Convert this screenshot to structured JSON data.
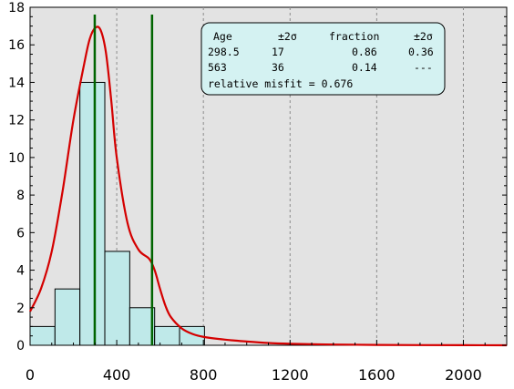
{
  "chart_data": {
    "type": "bar",
    "title": "",
    "xlabel": "",
    "ylabel": "",
    "xlim": [
      0,
      2200
    ],
    "ylim": [
      0,
      18
    ],
    "x_ticks": [
      "0",
      "400",
      "800",
      "1200",
      "1600",
      "2000"
    ],
    "y_ticks": [
      "0",
      "2",
      "4",
      "6",
      "8",
      "10",
      "12",
      "14",
      "16",
      "18"
    ],
    "histogram": {
      "bin_width": 115,
      "bins": [
        {
          "start": 0,
          "end": 115,
          "count": 1
        },
        {
          "start": 115,
          "end": 230,
          "count": 3
        },
        {
          "start": 230,
          "end": 345,
          "count": 14
        },
        {
          "start": 345,
          "end": 460,
          "count": 5
        },
        {
          "start": 460,
          "end": 575,
          "count": 2
        },
        {
          "start": 575,
          "end": 690,
          "count": 1
        },
        {
          "start": 690,
          "end": 805,
          "count": 1
        }
      ]
    },
    "density_curve": {
      "x": [
        0,
        50,
        100,
        150,
        200,
        250,
        275,
        300,
        325,
        350,
        375,
        400,
        450,
        500,
        550,
        575,
        600,
        625,
        650,
        700,
        750,
        800,
        900,
        1000,
        1100,
        1200,
        1400,
        1600,
        1800,
        2000,
        2200
      ],
      "y": [
        1.8,
        3.0,
        5.0,
        8.2,
        12.0,
        15.0,
        16.3,
        16.9,
        16.8,
        15.6,
        13.0,
        10.0,
        6.5,
        5.1,
        4.6,
        4.0,
        3.0,
        2.1,
        1.5,
        0.9,
        0.6,
        0.45,
        0.3,
        0.2,
        0.12,
        0.08,
        0.04,
        0.02,
        0.01,
        0.005,
        0
      ]
    },
    "peak_lines": [
      298.5,
      563
    ],
    "legend_placement": "top-center",
    "grid": "vertical dashed"
  },
  "results_box": {
    "header": {
      "age": "Age",
      "err": "±2σ",
      "fraction": "fraction",
      "frac_err": "±2σ"
    },
    "rows": [
      {
        "age": "298.5",
        "err": "17",
        "fraction": "0.86",
        "frac_err": "0.36"
      },
      {
        "age": "563",
        "err": "36",
        "fraction": "0.14",
        "frac_err": "---"
      }
    ],
    "misfit": "relative misfit = 0.676"
  },
  "colors": {
    "plot_background": "#e3e3e3",
    "bar_fill": "#bfe9e9",
    "bar_stroke": "#000000",
    "curve": "#d40000",
    "peak_line": "#006400",
    "legend_fill": "#d4f2f2",
    "grid": "#8c8c8c"
  }
}
